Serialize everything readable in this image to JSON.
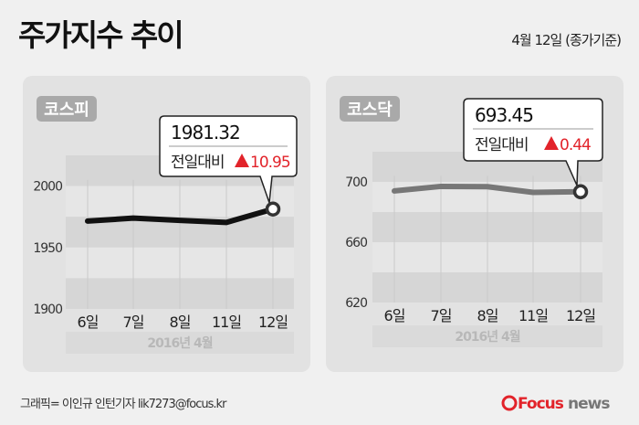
{
  "header": {
    "title": "주가지수 추이",
    "subtitle": "4월 12일 (종가기준)"
  },
  "colors": {
    "background": "#f0f0f0",
    "panel": "#e2e2e2",
    "band_dark": "#d6d6d6",
    "kospi_line": "#111111",
    "kosdaq_line": "#777777",
    "up": "#e2232a",
    "badge": "#a9a9a9"
  },
  "chart_data": [
    {
      "type": "line",
      "title": "코스피",
      "categories": [
        "6일",
        "7일",
        "8일",
        "11일",
        "12일"
      ],
      "values": [
        1971.5,
        1973.9,
        1972.1,
        1970.4,
        1981.32
      ],
      "yticks": [
        "2000",
        "1950",
        "1900"
      ],
      "ylim": [
        1900,
        2025
      ],
      "period_label": "2016년   4월",
      "callout": {
        "value": "1981.32",
        "label": "전일대비",
        "icon": "triangle-up-icon",
        "change": "10.95"
      }
    },
    {
      "type": "line",
      "title": "코스닥",
      "categories": [
        "6일",
        "7일",
        "8일",
        "11일",
        "12일"
      ],
      "values": [
        694.0,
        697.0,
        696.8,
        693.01,
        693.45
      ],
      "yticks": [
        "700",
        "660",
        "620"
      ],
      "ylim": [
        620,
        720
      ],
      "period_label": "2016년   4월",
      "callout": {
        "value": "693.45",
        "label": "전일대비",
        "icon": "triangle-up-icon",
        "change": "0.44"
      }
    }
  ],
  "footer": {
    "credit": "그래픽= 이인규 인턴기자 lik7273@focus.kr",
    "logo_part1": "Focus",
    "logo_part2": "news"
  }
}
